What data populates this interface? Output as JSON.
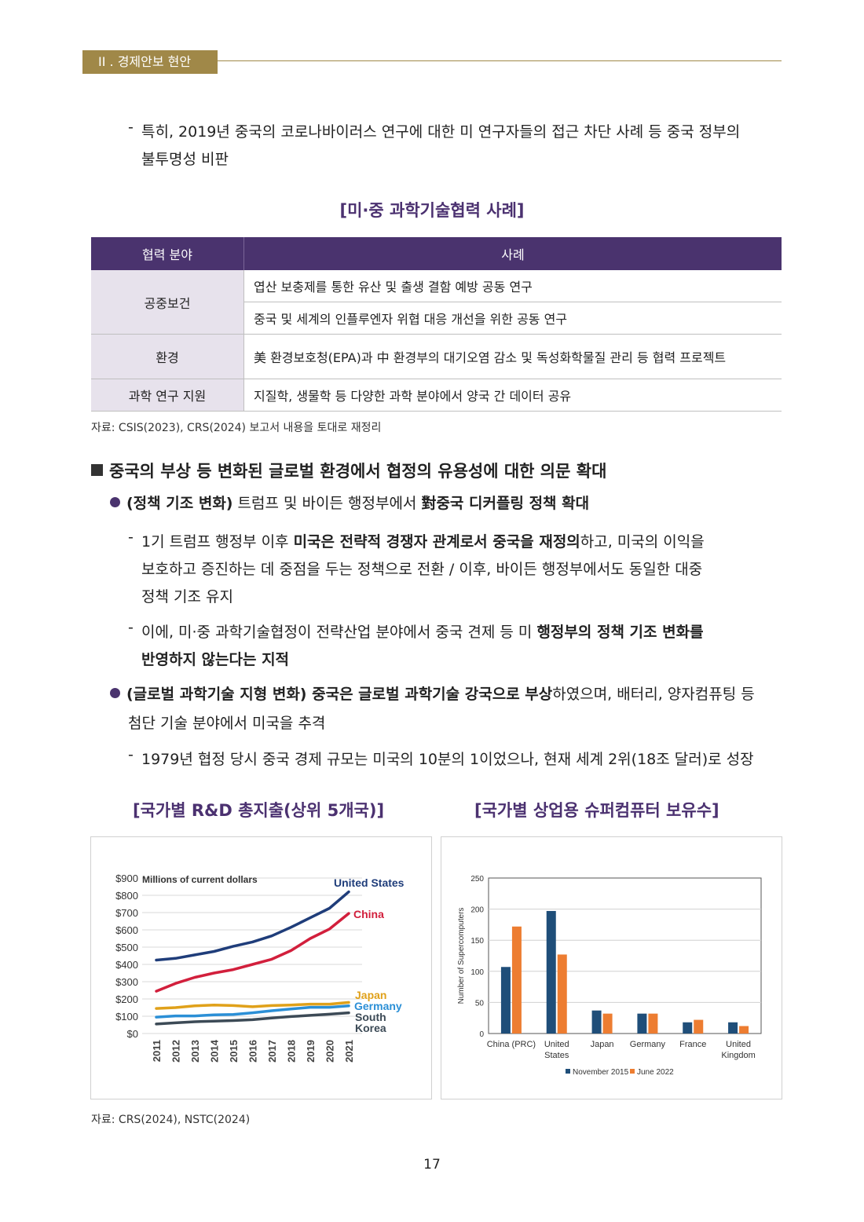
{
  "header": {
    "section": "II . 경제안보 현안"
  },
  "intro": {
    "dash": "-",
    "line1": "특히, 2019년 중국의 코로나바이러스 연구에 대한 미 연구자들의 접근 차단 사례 등 중국 정부의",
    "line2": "불투명성 비판"
  },
  "table": {
    "title": "[미·중 과학기술협력 사례]",
    "headers": [
      "협력 분야",
      "사례"
    ],
    "rows": [
      {
        "category": "공중보건",
        "cases": [
          "엽산 보충제를 통한 유산 및 출생 결함 예방 공동 연구",
          "중국 및 세계의 인플루엔자 위협 대응 개선을 위한 공동 연구"
        ]
      },
      {
        "category": "환경",
        "cases": [
          "美 환경보호청(EPA)과 中 환경부의 대기오염 감소 및 독성화학물질 관리 등 협력 프로젝트"
        ]
      },
      {
        "category": "과학 연구 지원",
        "cases": [
          "지질학, 생물학 등 다양한 과학 분야에서 양국 간 데이터 공유"
        ]
      }
    ],
    "source": "자료: CSIS(2023), CRS(2024) 보고서 내용을 토대로 재정리"
  },
  "section": {
    "heading": "중국의 부상 등 변화된 글로벌 환경에서 협정의 유용성에 대한 의문 확대",
    "bullet1": {
      "bold1": "(정책 기조 변화)",
      "text1": " 트럼프 및 바이든 행정부에서 ",
      "bold2": "對중국 디커플링 정책 확대",
      "sub1": {
        "a": "1기 트럼프 행정부 이후 ",
        "b": "미국은 전략적 경쟁자 관계로서 중국을 재정의",
        "c": "하고, 미국의 이익을",
        "line2": "보호하고 증진하는 데 중점을 두는 정책으로 전환 / 이후, 바이든 행정부에서도 동일한 대중",
        "line3": "정책 기조 유지"
      },
      "sub2": {
        "a": "이에, 미·중 과학기술협정이 전략산업 분야에서 중국 견제 등 미 ",
        "b": "행정부의 정책 기조 변화를",
        "line2": "반영하지 않는다는 지적"
      }
    },
    "bullet2": {
      "bold1": "(글로벌 과학기술 지형 변화) 중국은 글로벌 과학기술 강국으로 부상",
      "text1": "하였으며, 배터리, 양자컴퓨팅 등",
      "line2": "첨단 기술 분야에서 미국을 추격",
      "sub1": "1979년 협정 당시 중국 경제 규모는 미국의 10분의 1이었으나, 현재 세계 2위(18조 달러)로 성장"
    }
  },
  "chart_titles": {
    "left": "[국가별 R&D 총지출(상위 5개국)]",
    "right": "[국가별 상업용 슈퍼컴퓨터 보유수]"
  },
  "chart_data": [
    {
      "type": "line",
      "title": "Millions of current dollars",
      "x": [
        2011,
        2012,
        2013,
        2014,
        2015,
        2016,
        2017,
        2018,
        2019,
        2020,
        2021
      ],
      "ytick_labels": [
        "$0",
        "$100",
        "$200",
        "$300",
        "$400",
        "$500",
        "$600",
        "$700",
        "$800",
        "$900"
      ],
      "ylim": [
        0,
        900
      ],
      "series": [
        {
          "name": "United States",
          "color": "#1f3d7a",
          "values": [
            425,
            435,
            455,
            475,
            505,
            530,
            565,
            615,
            670,
            725,
            820
          ]
        },
        {
          "name": "China",
          "color": "#d21f3c",
          "values": [
            245,
            290,
            325,
            350,
            370,
            400,
            430,
            480,
            550,
            605,
            695
          ]
        },
        {
          "name": "Japan",
          "color": "#e0a11a",
          "values": [
            145,
            150,
            160,
            165,
            162,
            155,
            162,
            165,
            170,
            170,
            180
          ]
        },
        {
          "name": "Germany",
          "color": "#2b8fd6",
          "values": [
            95,
            102,
            102,
            108,
            110,
            120,
            132,
            142,
            152,
            152,
            160
          ]
        },
        {
          "name": "South Korea",
          "color": "#3c4a56",
          "values": [
            55,
            62,
            68,
            72,
            75,
            80,
            90,
            98,
            105,
            112,
            120
          ]
        }
      ],
      "legend_labels": {
        "us": "United States",
        "china": "China",
        "japan": "Japan",
        "germany": "Germany",
        "korea1": "South",
        "korea2": "Korea"
      }
    },
    {
      "type": "bar",
      "ylabel": "Number of Supercomputers",
      "ylim": [
        0,
        250
      ],
      "yticks": [
        0,
        50,
        100,
        150,
        200,
        250
      ],
      "categories": [
        "China (PRC)",
        "United States",
        "Japan",
        "Germany",
        "France",
        "United Kingdom"
      ],
      "category_lines": [
        [
          "China (PRC)"
        ],
        [
          "United",
          "States"
        ],
        [
          "Japan"
        ],
        [
          "Germany"
        ],
        [
          "France"
        ],
        [
          "United",
          "Kingdom"
        ]
      ],
      "series": [
        {
          "name": "November 2015",
          "color": "#1f4e79",
          "values": [
            107,
            197,
            37,
            32,
            18,
            18
          ]
        },
        {
          "name": "June 2022",
          "color": "#ed7d31",
          "values": [
            172,
            127,
            32,
            32,
            22,
            12
          ]
        }
      ]
    }
  ],
  "chart_source": "자료: CRS(2024), NSTC(2024)",
  "page_number": "17"
}
